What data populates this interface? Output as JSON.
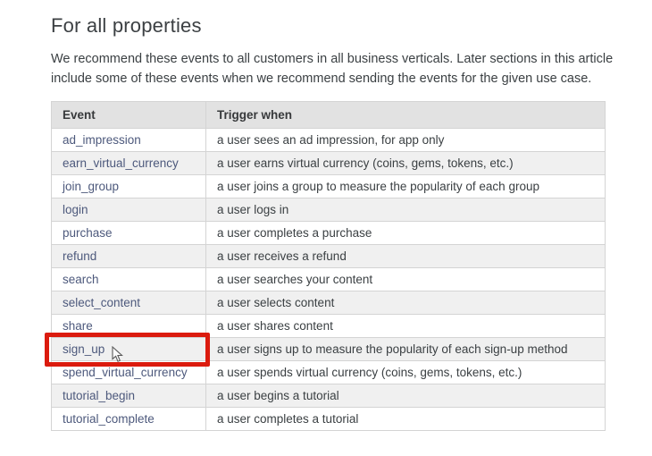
{
  "page": {
    "title": "For all properties",
    "intro": "We recommend these events to all customers in all business verticals. Later sections in this article include some of these events when we recommend sending the events for the given use case."
  },
  "table": {
    "headers": [
      "Event",
      "Trigger when"
    ],
    "rows": [
      {
        "event": "ad_impression",
        "trigger": "a user sees an ad impression, for app only",
        "highlighted": false
      },
      {
        "event": "earn_virtual_currency",
        "trigger": "a user earns virtual currency (coins, gems, tokens, etc.)",
        "highlighted": false
      },
      {
        "event": "join_group",
        "trigger": "a user joins a group to measure the popularity of each group",
        "highlighted": false
      },
      {
        "event": "login",
        "trigger": "a user logs in",
        "highlighted": false
      },
      {
        "event": "purchase",
        "trigger": "a user completes a purchase",
        "highlighted": false
      },
      {
        "event": "refund",
        "trigger": "a user receives a refund",
        "highlighted": false
      },
      {
        "event": "search",
        "trigger": "a user searches your content",
        "highlighted": false
      },
      {
        "event": "select_content",
        "trigger": "a user selects content",
        "highlighted": false
      },
      {
        "event": "share",
        "trigger": "a user shares content",
        "highlighted": false
      },
      {
        "event": "sign_up",
        "trigger": "a user signs up to measure the popularity of each sign-up method",
        "highlighted": true
      },
      {
        "event": "spend_virtual_currency",
        "trigger": "a user spends virtual currency (coins, gems, tokens, etc.)",
        "highlighted": false
      },
      {
        "event": "tutorial_begin",
        "trigger": "a user begins a tutorial",
        "highlighted": false
      },
      {
        "event": "tutorial_complete",
        "trigger": "a user completes a tutorial",
        "highlighted": false
      }
    ]
  },
  "annotation": {
    "highlight_color": "#db1b0e",
    "highlighted_event": "sign_up",
    "cursor": "arrow-pointer"
  },
  "colors": {
    "link": "#4d597c",
    "header_bg": "#e2e2e2",
    "stripe_bg": "#f0f0f0",
    "border": "#d4d4d4",
    "text": "#3b4043"
  }
}
